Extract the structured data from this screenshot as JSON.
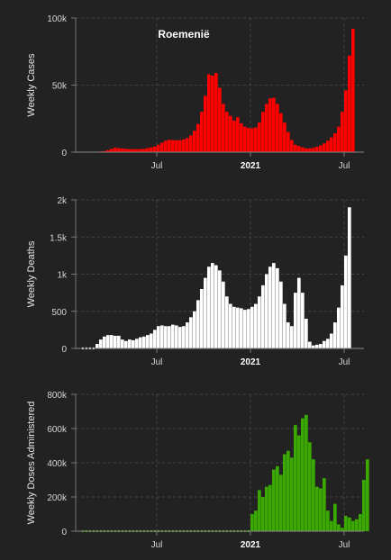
{
  "page_title": "Roemenië",
  "x_ticks": [
    {
      "label": "Jul",
      "bold": false,
      "week": 21
    },
    {
      "label": "2021",
      "bold": true,
      "week": 47
    },
    {
      "label": "Jul",
      "bold": false,
      "week": 73
    }
  ],
  "chart_data": [
    {
      "type": "bar",
      "title": "Roemenië",
      "ylabel": "Weekly Cases",
      "xlabel": "",
      "ylim": [
        0,
        100000
      ],
      "yticks": [
        {
          "value": 0,
          "label": "0"
        },
        {
          "value": 50000,
          "label": "50k"
        },
        {
          "value": 100000,
          "label": "100k"
        }
      ],
      "color": "#ff0000",
      "grid": true,
      "values": [
        0,
        0,
        100,
        200,
        300,
        500,
        800,
        1500,
        2500,
        3200,
        3000,
        2700,
        2500,
        2300,
        2300,
        2200,
        2300,
        2500,
        3000,
        3600,
        4200,
        5500,
        7000,
        8500,
        9200,
        9000,
        8800,
        8900,
        9500,
        10500,
        12500,
        16000,
        21000,
        30000,
        42000,
        58000,
        57000,
        59000,
        48000,
        36000,
        30000,
        27000,
        23500,
        26000,
        21500,
        19000,
        18000,
        17800,
        18500,
        22000,
        30000,
        36000,
        40000,
        40500,
        36000,
        29000,
        22000,
        15000,
        9000,
        5500,
        4500,
        3600,
        2800,
        2800,
        3200,
        4000,
        5000,
        6500,
        8500,
        11000,
        14000,
        19000,
        30000,
        46000,
        72000,
        92000
      ]
    },
    {
      "type": "bar",
      "ylabel": "Weekly Deaths",
      "xlabel": "",
      "ylim": [
        0,
        2000
      ],
      "yticks": [
        {
          "value": 0,
          "label": "0"
        },
        {
          "value": 500,
          "label": "500"
        },
        {
          "value": 1000,
          "label": "1k"
        },
        {
          "value": 1500,
          "label": "1.5k"
        },
        {
          "value": 2000,
          "label": "2k"
        }
      ],
      "color": "#ffffff",
      "grid": true,
      "values": [
        0,
        0,
        0,
        0,
        60,
        120,
        160,
        180,
        180,
        170,
        170,
        120,
        100,
        120,
        110,
        130,
        150,
        160,
        180,
        200,
        250,
        300,
        310,
        300,
        300,
        320,
        310,
        290,
        300,
        350,
        420,
        500,
        650,
        800,
        950,
        1100,
        1150,
        1120,
        1050,
        900,
        700,
        600,
        560,
        550,
        540,
        520,
        530,
        560,
        600,
        700,
        850,
        1000,
        1100,
        1150,
        1080,
        900,
        600,
        350,
        300,
        750,
        950,
        750,
        400,
        90,
        40,
        50,
        60,
        100,
        130,
        200,
        350,
        550,
        850,
        1250,
        1900
      ]
    },
    {
      "type": "bar",
      "ylabel": "Weekly Doses Administered",
      "xlabel": "",
      "ylim": [
        0,
        800000
      ],
      "yticks": [
        {
          "value": 0,
          "label": "0"
        },
        {
          "value": 200000,
          "label": "200k"
        },
        {
          "value": 400000,
          "label": "400k"
        },
        {
          "value": 600000,
          "label": "600k"
        },
        {
          "value": 800000,
          "label": "800k"
        }
      ],
      "color": "#3aaa00",
      "grid": true,
      "values": [
        0,
        0,
        0,
        0,
        0,
        0,
        0,
        0,
        0,
        0,
        0,
        0,
        0,
        0,
        0,
        0,
        0,
        0,
        0,
        0,
        0,
        0,
        0,
        0,
        0,
        0,
        0,
        0,
        0,
        0,
        0,
        0,
        0,
        0,
        0,
        0,
        0,
        0,
        0,
        0,
        0,
        0,
        0,
        0,
        0,
        0,
        0,
        100000,
        120000,
        240000,
        200000,
        260000,
        270000,
        360000,
        380000,
        330000,
        450000,
        470000,
        430000,
        620000,
        560000,
        660000,
        680000,
        520000,
        420000,
        260000,
        250000,
        310000,
        120000,
        60000,
        160000,
        40000,
        20000,
        90000,
        80000,
        60000,
        70000,
        100000,
        300000,
        420000
      ]
    }
  ]
}
